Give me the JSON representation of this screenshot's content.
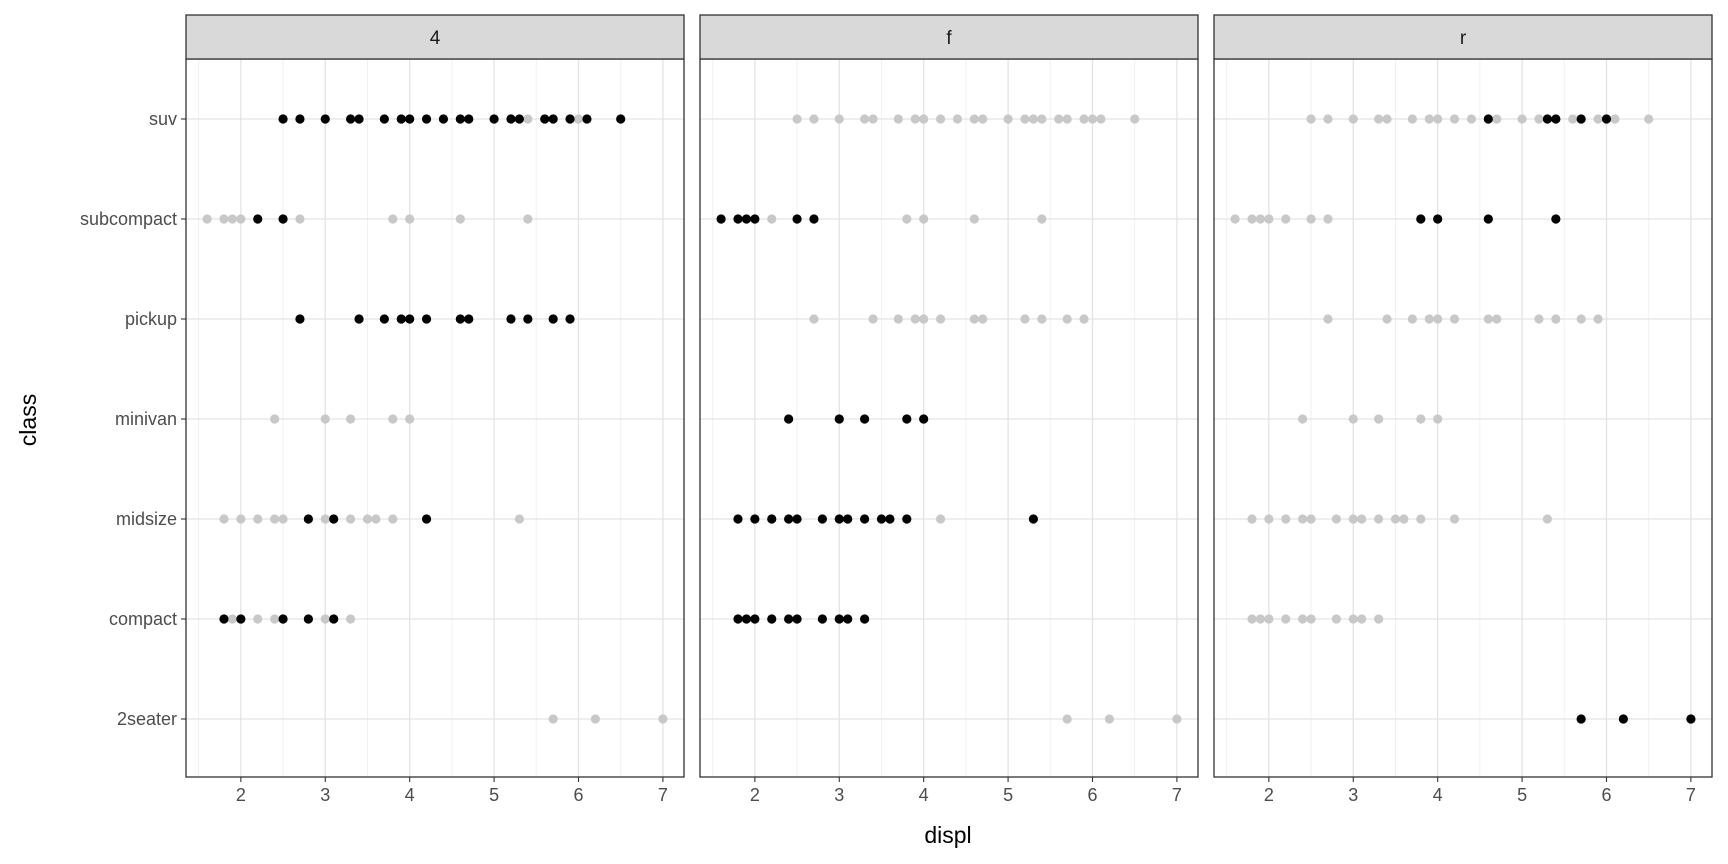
{
  "chart_data": {
    "type": "scatter",
    "facet_variable": "drv",
    "facets": [
      "4",
      "f",
      "r"
    ],
    "xlabel": "displ",
    "ylabel": "class",
    "xlim": [
      1.35,
      7.25
    ],
    "x_ticks": [
      2,
      3,
      4,
      5,
      6,
      7
    ],
    "x_tick_labels": [
      "2",
      "3",
      "4",
      "5",
      "6",
      "7"
    ],
    "categories": [
      "2seater",
      "compact",
      "midsize",
      "minivan",
      "pickup",
      "subcompact",
      "suv"
    ],
    "grid": true,
    "theme": "bw",
    "background_points_color": "#c8c8c8",
    "highlight_points_color": "#000000",
    "background_points": [
      {
        "class": "suv",
        "displ": [
          2.5,
          2.7,
          3.0,
          3.3,
          3.4,
          3.7,
          3.9,
          4.0,
          4.2,
          4.4,
          4.6,
          4.7,
          5.0,
          5.2,
          5.3,
          5.4,
          5.6,
          5.7,
          5.9,
          6.0,
          6.1,
          6.5
        ]
      },
      {
        "class": "subcompact",
        "displ": [
          1.6,
          1.8,
          1.9,
          2.0,
          2.2,
          2.5,
          2.7,
          3.8,
          4.0,
          4.6,
          5.4
        ]
      },
      {
        "class": "pickup",
        "displ": [
          2.7,
          3.4,
          3.7,
          3.9,
          4.0,
          4.2,
          4.6,
          4.7,
          5.2,
          5.4,
          5.7,
          5.9
        ]
      },
      {
        "class": "minivan",
        "displ": [
          2.4,
          3.0,
          3.3,
          3.8,
          4.0
        ]
      },
      {
        "class": "midsize",
        "displ": [
          1.8,
          2.0,
          2.2,
          2.4,
          2.5,
          2.8,
          3.0,
          3.1,
          3.3,
          3.5,
          3.6,
          3.8,
          4.2,
          5.3
        ]
      },
      {
        "class": "compact",
        "displ": [
          1.8,
          1.9,
          2.0,
          2.2,
          2.4,
          2.5,
          2.8,
          3.0,
          3.1,
          3.3
        ]
      },
      {
        "class": "2seater",
        "displ": [
          5.7,
          6.2,
          7.0
        ]
      }
    ],
    "series": [
      {
        "facet": "4",
        "points": [
          {
            "class": "suv",
            "displ": [
              2.5,
              2.7,
              3.0,
              3.3,
              3.4,
              3.7,
              3.9,
              4.0,
              4.2,
              4.4,
              4.6,
              4.7,
              5.0,
              5.2,
              5.3,
              5.6,
              5.7,
              5.9,
              6.1,
              6.5
            ]
          },
          {
            "class": "subcompact",
            "displ": [
              2.2,
              2.5
            ]
          },
          {
            "class": "pickup",
            "displ": [
              2.7,
              3.4,
              3.7,
              3.9,
              4.0,
              4.2,
              4.6,
              4.7,
              5.2,
              5.4,
              5.7,
              5.9
            ]
          },
          {
            "class": "midsize",
            "displ": [
              2.8,
              3.1,
              4.2
            ]
          },
          {
            "class": "compact",
            "displ": [
              1.8,
              2.0,
              2.5,
              2.8,
              3.1
            ]
          }
        ]
      },
      {
        "facet": "f",
        "points": [
          {
            "class": "subcompact",
            "displ": [
              1.6,
              1.8,
              1.9,
              2.0,
              2.5,
              2.7
            ]
          },
          {
            "class": "minivan",
            "displ": [
              2.4,
              3.0,
              3.3,
              3.8,
              4.0
            ]
          },
          {
            "class": "midsize",
            "displ": [
              1.8,
              2.0,
              2.2,
              2.4,
              2.5,
              2.8,
              3.0,
              3.1,
              3.3,
              3.5,
              3.6,
              3.8,
              5.3
            ]
          },
          {
            "class": "compact",
            "displ": [
              1.8,
              1.9,
              2.0,
              2.2,
              2.4,
              2.5,
              2.8,
              3.0,
              3.1,
              3.3
            ]
          }
        ]
      },
      {
        "facet": "r",
        "points": [
          {
            "class": "suv",
            "displ": [
              4.6,
              5.3,
              5.4,
              5.7,
              6.0
            ]
          },
          {
            "class": "subcompact",
            "displ": [
              3.8,
              4.0,
              4.6,
              5.4
            ]
          },
          {
            "class": "2seater",
            "displ": [
              5.7,
              6.2,
              7.0
            ]
          }
        ]
      }
    ]
  }
}
